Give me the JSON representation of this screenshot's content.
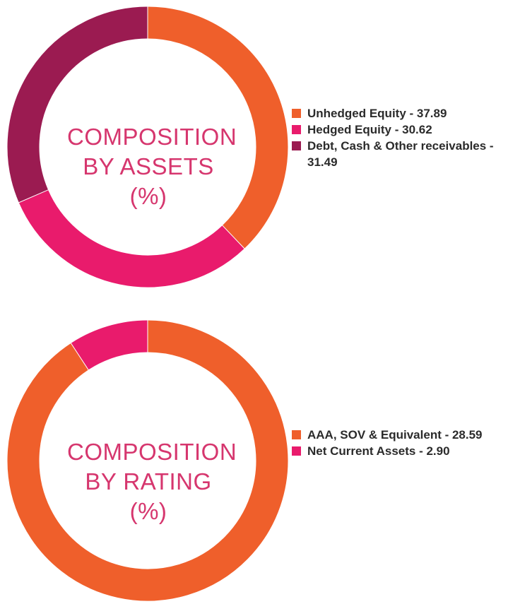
{
  "chart_data": [
    {
      "type": "pie",
      "title_lines": [
        "COMPOSITION",
        "BY ASSETS",
        "(%)"
      ],
      "series": [
        {
          "name": "Unhedged Equity",
          "value": 37.89,
          "label": "Unhedged Equity - 37.89",
          "color": "#ef5f2b"
        },
        {
          "name": "Hedged Equity",
          "value": 30.62,
          "label": "Hedged Equity - 30.62",
          "color": "#e91b6c"
        },
        {
          "name": "Debt, Cash & Other receivables",
          "value": 31.49,
          "label": "Debt, Cash & Other receivables - 31.49",
          "color": "#9b1b51"
        }
      ],
      "legend_position": "right"
    },
    {
      "type": "pie",
      "title_lines": [
        "COMPOSITION",
        "BY RATING",
        "(%)"
      ],
      "series": [
        {
          "name": "AAA, SOV & Equivalent",
          "value": 28.59,
          "label": "AAA, SOV & Equivalent - 28.59",
          "color": "#ef5f2b"
        },
        {
          "name": "Net Current Assets",
          "value": 2.9,
          "label": "Net Current Assets - 2.90",
          "color": "#e91b6c"
        }
      ],
      "legend_position": "right"
    }
  ]
}
